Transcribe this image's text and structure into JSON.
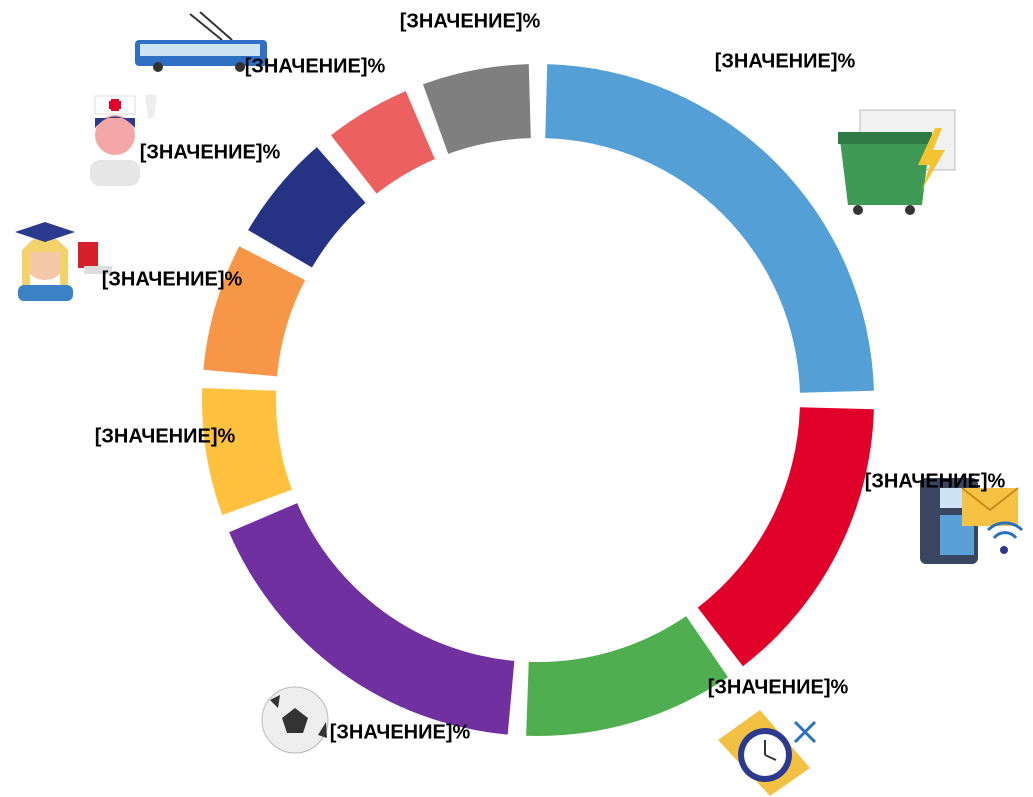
{
  "chart_data": {
    "type": "donut",
    "values": [
      25,
      15,
      11,
      18,
      7,
      7,
      6,
      5,
      6
    ],
    "value_labels": [
      "[ЗНАЧЕНИЕ]%",
      "[ЗНАЧЕНИЕ]%",
      "[ЗНАЧЕНИЕ]%",
      "[ЗНАЧЕНИЕ]%",
      "[ЗНАЧЕНИЕ]%",
      "[ЗНАЧЕНИЕ]%",
      "[ЗНАЧЕНИЕ]%",
      "[ЗНАЧЕНИЕ]%",
      "[ЗНАЧЕНИЕ]%"
    ],
    "colors": [
      "#559fd7",
      "#e1002a",
      "#4fae4f",
      "#7030a0",
      "#ffc13e",
      "#f79646",
      "#263385",
      "#ec6060",
      "#7f7f7f"
    ]
  }
}
